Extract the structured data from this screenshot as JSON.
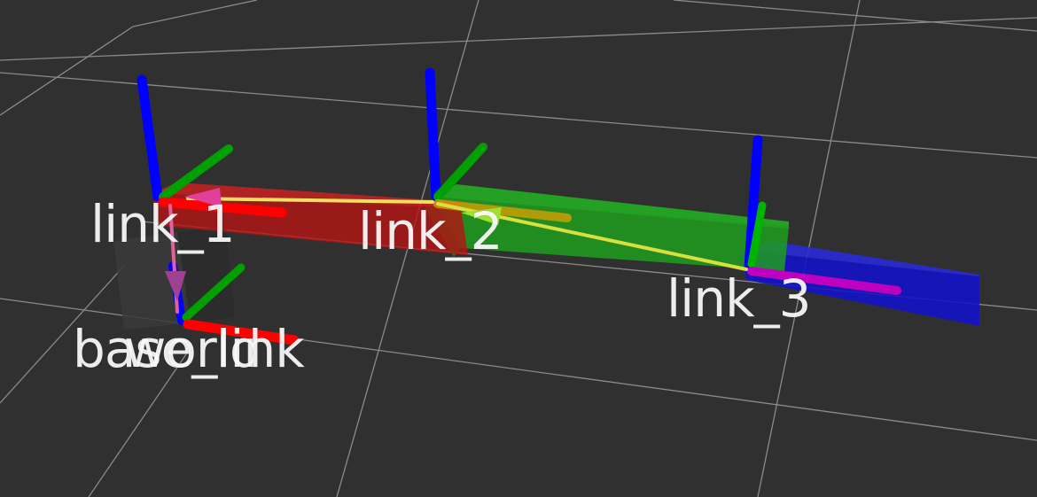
{
  "viewer": {
    "background_color": "#303030",
    "grid_color": "#a8a8a8"
  },
  "frames": [
    {
      "id": "link1",
      "label": "link_1"
    },
    {
      "id": "link2",
      "label": "link_2"
    },
    {
      "id": "link3",
      "label": "link_3"
    },
    {
      "id": "base",
      "label": "base_link"
    },
    {
      "id": "world",
      "label": "world"
    }
  ],
  "links": [
    {
      "name": "link_1",
      "color": "#c81414"
    },
    {
      "name": "link_2",
      "color": "#1e9e1e"
    },
    {
      "name": "link_3",
      "color": "#1414c8"
    }
  ],
  "axis_colors": {
    "x": "#ff0000",
    "y": "#00b400",
    "z": "#0000ff"
  },
  "tf_arrow_colors": {
    "start": "#ff00ff",
    "end": "#ffff00"
  }
}
